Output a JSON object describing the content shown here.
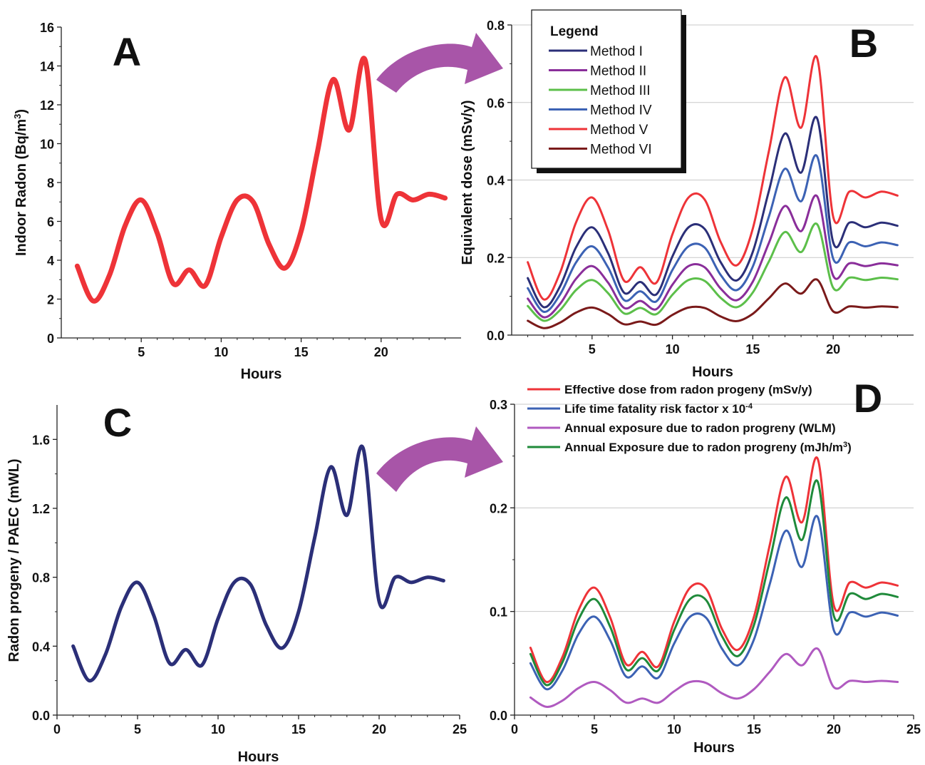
{
  "chart_data": [
    {
      "id": "A",
      "type": "line",
      "panel_letter": "A",
      "title": "",
      "xlabel": "Hours",
      "ylabel_prefix": "Indoor Radon (Bq/m",
      "ylabel_sup": "3",
      "ylabel_suffix": ")",
      "xlim": [
        0,
        25
      ],
      "ylim": [
        0,
        16
      ],
      "xticks": [
        5,
        10,
        15,
        20
      ],
      "yticks": [
        0,
        2,
        4,
        6,
        8,
        10,
        12,
        14,
        16
      ],
      "grid": false,
      "series": [
        {
          "color": "#ee3338",
          "x": [
            1,
            2,
            3,
            4,
            5,
            6,
            7,
            8,
            9,
            10,
            11,
            12,
            13,
            14,
            15,
            16,
            17,
            18,
            19,
            20,
            21,
            22,
            23,
            24
          ],
          "values": [
            3.7,
            1.9,
            3.2,
            5.8,
            7.1,
            5.4,
            2.8,
            3.5,
            2.7,
            5.2,
            7.1,
            7.0,
            4.8,
            3.6,
            5.5,
            9.5,
            13.3,
            10.7,
            14.3,
            6.1,
            7.4,
            7.1,
            7.4,
            7.2
          ]
        }
      ]
    },
    {
      "id": "B",
      "type": "line",
      "panel_letter": "B",
      "title": "",
      "xlabel": "Hours",
      "ylabel": "Equivalent dose (mSv/y)",
      "xlim": [
        0,
        25
      ],
      "ylim": [
        0,
        0.8
      ],
      "xticks": [
        5,
        10,
        15,
        20
      ],
      "yticks": [
        0.0,
        0.2,
        0.4,
        0.6,
        0.8
      ],
      "grid": true,
      "legend_title": "Legend",
      "legend_position": "top-left",
      "series": [
        {
          "name": "Method I",
          "color": "#2b2f78",
          "x": [
            1,
            2,
            3,
            4,
            5,
            6,
            7,
            8,
            9,
            10,
            11,
            12,
            13,
            14,
            15,
            16,
            17,
            18,
            19,
            20,
            21,
            22,
            23,
            24
          ],
          "values": [
            0.147,
            0.072,
            0.125,
            0.226,
            0.278,
            0.211,
            0.109,
            0.137,
            0.105,
            0.203,
            0.278,
            0.274,
            0.188,
            0.141,
            0.215,
            0.372,
            0.52,
            0.419,
            0.559,
            0.239,
            0.29,
            0.278,
            0.29,
            0.282
          ]
        },
        {
          "name": "Method II",
          "color": "#8a2e9a",
          "x": [
            1,
            2,
            3,
            4,
            5,
            6,
            7,
            8,
            9,
            10,
            11,
            12,
            13,
            14,
            15,
            16,
            17,
            18,
            19,
            20,
            21,
            22,
            23,
            24
          ],
          "values": [
            0.094,
            0.046,
            0.08,
            0.145,
            0.178,
            0.135,
            0.07,
            0.088,
            0.067,
            0.13,
            0.178,
            0.175,
            0.12,
            0.09,
            0.138,
            0.238,
            0.333,
            0.268,
            0.358,
            0.153,
            0.185,
            0.178,
            0.185,
            0.18
          ]
        },
        {
          "name": "Method III",
          "color": "#5cbf4a",
          "x": [
            1,
            2,
            3,
            4,
            5,
            6,
            7,
            8,
            9,
            10,
            11,
            12,
            13,
            14,
            15,
            16,
            17,
            18,
            19,
            20,
            21,
            22,
            23,
            24
          ],
          "values": [
            0.075,
            0.037,
            0.064,
            0.116,
            0.142,
            0.108,
            0.056,
            0.07,
            0.054,
            0.104,
            0.142,
            0.14,
            0.096,
            0.072,
            0.11,
            0.19,
            0.266,
            0.214,
            0.286,
            0.122,
            0.148,
            0.142,
            0.148,
            0.144
          ]
        },
        {
          "name": "Method IV",
          "color": "#3c62b4",
          "x": [
            1,
            2,
            3,
            4,
            5,
            6,
            7,
            8,
            9,
            10,
            11,
            12,
            13,
            14,
            15,
            16,
            17,
            18,
            19,
            20,
            21,
            22,
            23,
            24
          ],
          "values": [
            0.121,
            0.06,
            0.104,
            0.187,
            0.229,
            0.174,
            0.09,
            0.113,
            0.087,
            0.168,
            0.229,
            0.226,
            0.155,
            0.116,
            0.177,
            0.306,
            0.429,
            0.345,
            0.461,
            0.197,
            0.239,
            0.229,
            0.239,
            0.232
          ]
        },
        {
          "name": "Method V",
          "color": "#ee3338",
          "x": [
            1,
            2,
            3,
            4,
            5,
            6,
            7,
            8,
            9,
            10,
            11,
            12,
            13,
            14,
            15,
            16,
            17,
            18,
            19,
            20,
            21,
            22,
            23,
            24
          ],
          "values": [
            0.188,
            0.092,
            0.16,
            0.29,
            0.355,
            0.27,
            0.14,
            0.175,
            0.135,
            0.26,
            0.355,
            0.35,
            0.24,
            0.18,
            0.275,
            0.475,
            0.665,
            0.535,
            0.715,
            0.305,
            0.37,
            0.355,
            0.37,
            0.36
          ]
        },
        {
          "name": "Method VI",
          "color": "#7a1a1a",
          "x": [
            1,
            2,
            3,
            4,
            5,
            6,
            7,
            8,
            9,
            10,
            11,
            12,
            13,
            14,
            15,
            16,
            17,
            18,
            19,
            20,
            21,
            22,
            23,
            24
          ],
          "values": [
            0.037,
            0.018,
            0.032,
            0.058,
            0.071,
            0.054,
            0.028,
            0.035,
            0.027,
            0.052,
            0.071,
            0.07,
            0.048,
            0.036,
            0.055,
            0.095,
            0.133,
            0.107,
            0.143,
            0.061,
            0.074,
            0.071,
            0.074,
            0.072
          ]
        }
      ]
    },
    {
      "id": "C",
      "type": "line",
      "panel_letter": "C",
      "title": "",
      "xlabel": "Hours",
      "ylabel": "Radon progeny / PAEC (mWL)",
      "xlim": [
        0,
        25
      ],
      "ylim": [
        0,
        1.8
      ],
      "xticks": [
        0,
        5,
        10,
        15,
        20,
        25
      ],
      "yticks": [
        0.0,
        0.4,
        0.8,
        1.2,
        1.6
      ],
      "grid": false,
      "series": [
        {
          "color": "#2b2f78",
          "x": [
            1,
            2,
            3,
            4,
            5,
            6,
            7,
            8,
            9,
            10,
            11,
            12,
            13,
            14,
            15,
            16,
            17,
            18,
            19,
            20,
            21,
            22,
            23,
            24
          ],
          "values": [
            0.4,
            0.2,
            0.35,
            0.63,
            0.77,
            0.58,
            0.3,
            0.38,
            0.29,
            0.56,
            0.77,
            0.76,
            0.52,
            0.39,
            0.6,
            1.03,
            1.44,
            1.16,
            1.55,
            0.66,
            0.8,
            0.77,
            0.8,
            0.78
          ]
        }
      ]
    },
    {
      "id": "D",
      "type": "line",
      "panel_letter": "D",
      "title": "",
      "xlabel": "Hours",
      "ylabel": "",
      "xlim": [
        0,
        25
      ],
      "ylim": [
        0,
        0.3
      ],
      "xticks": [
        0,
        5,
        10,
        15,
        20,
        25
      ],
      "yticks": [
        0.0,
        0.1,
        0.2,
        0.3
      ],
      "grid": true,
      "legend_position": "top",
      "series": [
        {
          "name": "Effective dose from radon progeny (mSv/y)",
          "color": "#ee3338",
          "x": [
            1,
            2,
            3,
            4,
            5,
            6,
            7,
            8,
            9,
            10,
            11,
            12,
            13,
            14,
            15,
            16,
            17,
            18,
            19,
            20,
            21,
            22,
            23,
            24
          ],
          "values": [
            0.065,
            0.032,
            0.056,
            0.101,
            0.123,
            0.094,
            0.049,
            0.061,
            0.047,
            0.09,
            0.123,
            0.122,
            0.083,
            0.063,
            0.095,
            0.165,
            0.23,
            0.186,
            0.247,
            0.106,
            0.128,
            0.123,
            0.128,
            0.125
          ]
        },
        {
          "name": "Life time fatality risk factor x 10",
          "name_sup": "-4",
          "color": "#3c62b4",
          "x": [
            1,
            2,
            3,
            4,
            5,
            6,
            7,
            8,
            9,
            10,
            11,
            12,
            13,
            14,
            15,
            16,
            17,
            18,
            19,
            20,
            21,
            22,
            23,
            24
          ],
          "values": [
            0.05,
            0.025,
            0.043,
            0.078,
            0.095,
            0.072,
            0.037,
            0.047,
            0.036,
            0.069,
            0.095,
            0.094,
            0.064,
            0.048,
            0.073,
            0.127,
            0.178,
            0.143,
            0.191,
            0.082,
            0.099,
            0.095,
            0.099,
            0.096
          ]
        },
        {
          "name": "Annual exposure due to radon progreny (WLM)",
          "color": "#b05ac0",
          "x": [
            1,
            2,
            3,
            4,
            5,
            6,
            7,
            8,
            9,
            10,
            11,
            12,
            13,
            14,
            15,
            16,
            17,
            18,
            19,
            20,
            21,
            22,
            23,
            24
          ],
          "values": [
            0.017,
            0.008,
            0.014,
            0.026,
            0.032,
            0.024,
            0.012,
            0.016,
            0.012,
            0.023,
            0.032,
            0.031,
            0.021,
            0.016,
            0.025,
            0.042,
            0.059,
            0.048,
            0.064,
            0.027,
            0.033,
            0.032,
            0.033,
            0.032
          ]
        },
        {
          "name": "Annual Exposure  due to radon progreny (mJh/m",
          "name_sup": "3",
          "name_suffix": ")",
          "color": "#1f8a3a",
          "x": [
            1,
            2,
            3,
            4,
            5,
            6,
            7,
            8,
            9,
            10,
            11,
            12,
            13,
            14,
            15,
            16,
            17,
            18,
            19,
            20,
            21,
            22,
            23,
            24
          ],
          "values": [
            0.059,
            0.029,
            0.051,
            0.092,
            0.112,
            0.085,
            0.044,
            0.055,
            0.043,
            0.082,
            0.112,
            0.111,
            0.076,
            0.057,
            0.087,
            0.15,
            0.21,
            0.169,
            0.225,
            0.096,
            0.117,
            0.112,
            0.117,
            0.114
          ]
        }
      ]
    }
  ],
  "arrow_color": "#a855a8"
}
